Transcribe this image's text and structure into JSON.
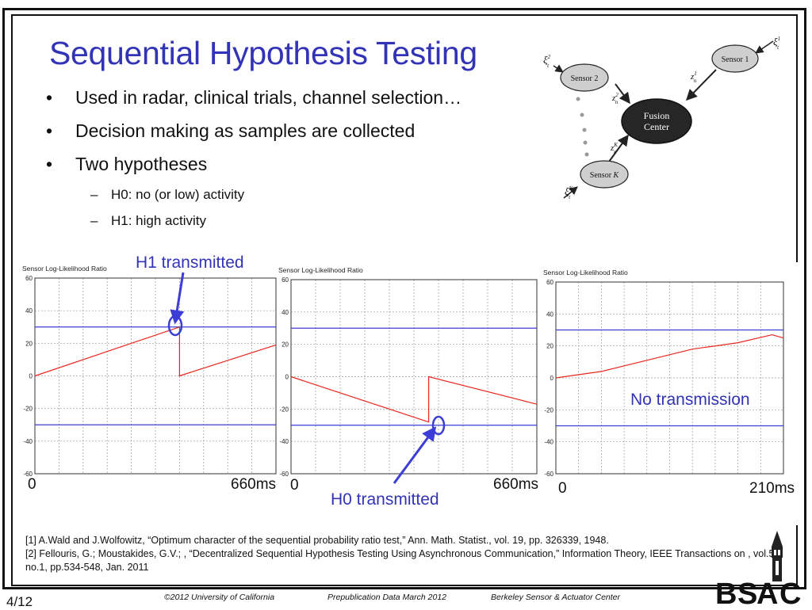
{
  "slide": {
    "title": "Sequential Hypothesis Testing",
    "bullets": [
      {
        "text": "Used in radar, clinical trials, channel selection…"
      },
      {
        "text": "Decision making as samples are collected"
      },
      {
        "text": "Two hypotheses",
        "sub": [
          "H0: no (or low) activity",
          "H1: high activity"
        ]
      }
    ],
    "bullet_symbol": "•",
    "sub_symbol": "–"
  },
  "diagram": {
    "fusion_label_1": "Fusion",
    "fusion_label_2": "Center",
    "sensor1": "Sensor 1",
    "sensor2": "Sensor 2",
    "sensorK_prefix": "Sensor ",
    "sensorK_var": "K",
    "xi1_base": "ξ",
    "xi1_sup": "1",
    "xi1_sub": "t",
    "xi2_base": "ξ",
    "xi2_sup": "2",
    "xi2_sub": "t",
    "xiK_base": "ξ",
    "xiK_sup": "K",
    "xiK_sub": "t",
    "z1_base": "z",
    "z1_sup": "1",
    "z1_sub": "n",
    "z2_base": "z",
    "z2_sup": "2",
    "z2_sub": "n",
    "zK_base": "z",
    "zK_sup": "K",
    "zK_sub": "n"
  },
  "chart_data": [
    {
      "type": "line",
      "title": "Sensor Log-Likelihood Ratio",
      "ylim": [
        -60,
        60
      ],
      "yticks": [
        "60",
        "40",
        "20",
        "0",
        "-20",
        "-40",
        "-60"
      ],
      "x_start_label": "0",
      "x_end_label": "660ms",
      "thresholds": [
        30,
        -30
      ],
      "grid": true,
      "series": [
        {
          "x": [
            0,
            0.6,
            0.6,
            1.0
          ],
          "y": [
            0,
            30,
            0,
            19
          ]
        }
      ],
      "colors": {
        "series": "#e8281e",
        "threshold": "#3c3cd6",
        "grid": "#9a9a9a"
      }
    },
    {
      "type": "line",
      "title": "Sensor Log-Likelihood Ratio",
      "ylim": [
        -60,
        60
      ],
      "yticks": [
        "60",
        "40",
        "20",
        "0",
        "-20",
        "-40",
        "-60"
      ],
      "x_start_label": "0",
      "x_end_label": "660ms",
      "thresholds": [
        30,
        -30
      ],
      "grid": true,
      "series": [
        {
          "x": [
            0,
            0.56,
            0.56,
            1.0
          ],
          "y": [
            0,
            -28,
            0,
            -17
          ]
        }
      ],
      "colors": {
        "series": "#e8281e",
        "threshold": "#3c3cd6",
        "grid": "#9a9a9a"
      }
    },
    {
      "type": "line",
      "title": "Sensor Log-Likelihood Ratio",
      "ylim": [
        -60,
        60
      ],
      "yticks": [
        "60",
        "40",
        "20",
        "0",
        "-20",
        "-40",
        "-60"
      ],
      "x_start_label": "0",
      "x_end_label": "210ms",
      "thresholds": [
        30,
        -30
      ],
      "grid": true,
      "series": [
        {
          "x": [
            0,
            0.2,
            0.4,
            0.6,
            0.8,
            0.95,
            1.0
          ],
          "y": [
            0,
            4,
            11,
            18,
            22,
            27,
            25
          ]
        }
      ],
      "colors": {
        "series": "#e8281e",
        "threshold": "#3c3cd6",
        "grid": "#9a9a9a"
      }
    }
  ],
  "annotations": {
    "h1": "H1 transmitted",
    "h0": "H0 transmitted",
    "none": "No transmission"
  },
  "references": [
    "[1] A.Wald and J.Wolfowitz, “Optimum character of the sequential probability ratio test,” Ann. Math. Statist., vol. 19, pp. 326339, 1948.",
    "[2] Fellouris, G.; Moustakides, G.V.; , “Decentralized Sequential Hypothesis Testing Using Asynchronous Communication,” Information Theory, IEEE Transactions on , vol.57, no.1, pp.534-548, Jan. 2011"
  ],
  "footer": {
    "page": "4/12",
    "copyright": "©2012 University of California",
    "prepub": "Prepublication Data March 2012",
    "center": "Berkeley Sensor & Actuator Center",
    "logo_text": "BSAC",
    "logo_letter_b": "B",
    "logo_letter_s": "S",
    "logo_letter_a": "A",
    "logo_letter_c": "C"
  },
  "colors": {
    "accent": "#3333b8",
    "series": "#e8281e",
    "threshold": "#3c3cd6"
  }
}
